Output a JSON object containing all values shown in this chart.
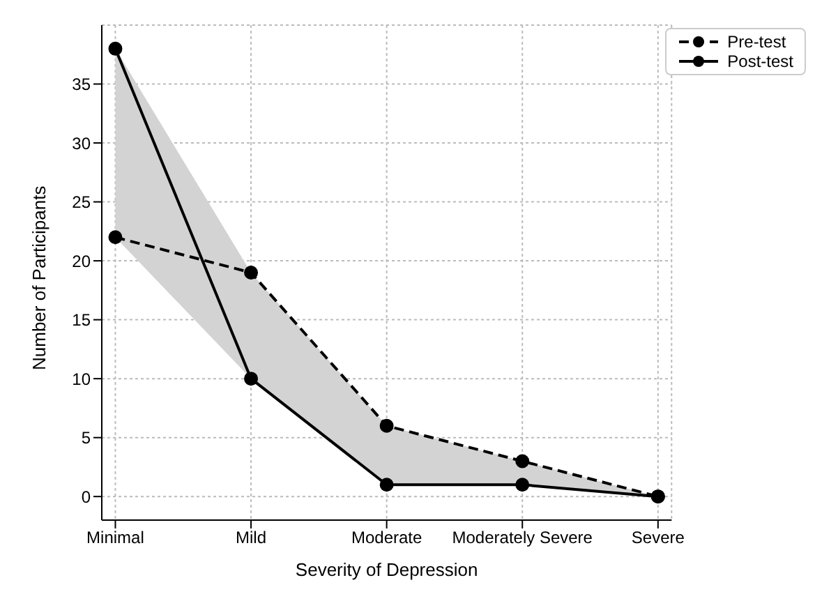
{
  "chart_data": {
    "type": "line",
    "xlabel": "Severity of Depression",
    "ylabel": "Number of Participants",
    "categories": [
      "Minimal",
      "Mild",
      "Moderate",
      "Moderately Severe",
      "Severe"
    ],
    "series": [
      {
        "name": "Pre-test",
        "color": "#000000",
        "line_style": "dashed",
        "values": [
          22,
          19,
          6,
          3,
          0
        ]
      },
      {
        "name": "Post-test",
        "color": "#000000",
        "line_style": "solid",
        "values": [
          38,
          10,
          1,
          1,
          0
        ],
        "lower": [
          22,
          10,
          1,
          1,
          0
        ],
        "upper": [
          38,
          19,
          6,
          3,
          0
        ]
      }
    ],
    "ylim": [
      -2,
      40
    ],
    "yticks": [
      0,
      5,
      10,
      15,
      20,
      25,
      30,
      35
    ],
    "grid": true,
    "legend": "top right",
    "marker": "circle"
  }
}
